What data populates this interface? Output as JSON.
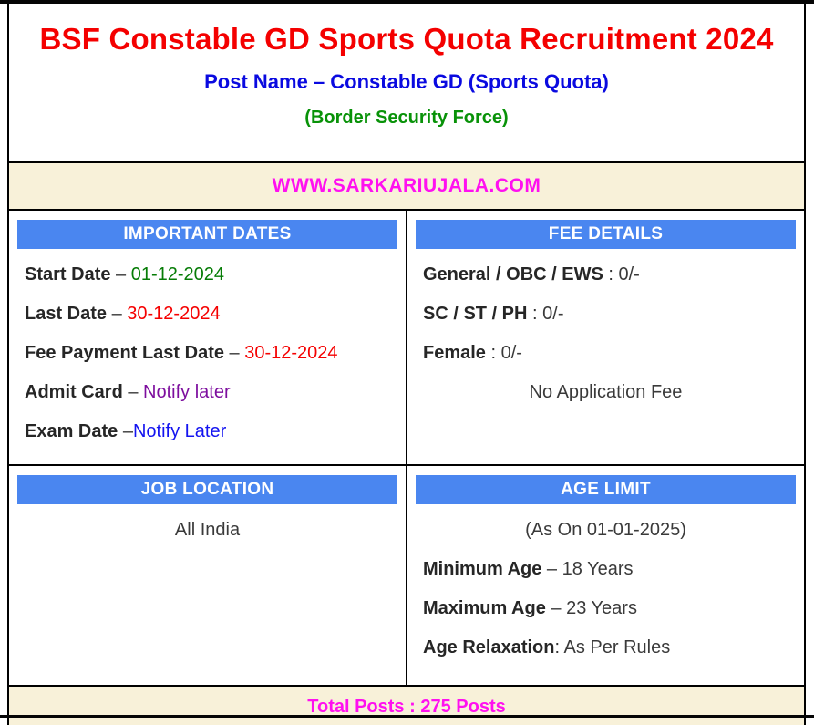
{
  "header": {
    "title": "BSF Constable GD Sports Quota Recruitment 2024",
    "post_name": "Post Name – Constable GD (Sports Quota)",
    "organization": "(Border Security Force)"
  },
  "site_banner": {
    "text": "WWW.SARKARIUJALA.COM"
  },
  "important_dates": {
    "header": "IMPORTANT DATES",
    "items": [
      {
        "label": "Start Date",
        "sep": " – ",
        "value": "01-12-2024",
        "color": "#067c06"
      },
      {
        "label": "Last Date",
        "sep": " – ",
        "value": "30-12-2024",
        "color": "#f50000"
      },
      {
        "label": "Fee Payment Last Date",
        "sep": " – ",
        "value": "30-12-2024",
        "color": "#f50000"
      },
      {
        "label": "Admit Card",
        "sep": " – ",
        "value": "Notify later",
        "color": "#7d0e9e"
      },
      {
        "label": "Exam Date",
        "sep": " –",
        "value": "Notify Later",
        "color": "#1414f0"
      }
    ]
  },
  "fee_details": {
    "header": "FEE DETAILS",
    "items": [
      {
        "label": "General / OBC / EWS",
        "sep": " : ",
        "value": "0/-"
      },
      {
        "label": "SC / ST / PH",
        "sep": " : ",
        "value": "0/-"
      },
      {
        "label": "Female",
        "sep": " : ",
        "value": "0/-"
      }
    ],
    "note": "No Application Fee"
  },
  "job_location": {
    "header": "JOB LOCATION",
    "value": "All India"
  },
  "age_limit": {
    "header": "AGE LIMIT",
    "as_on": "(As On 01-01-2025)",
    "items": [
      {
        "label": "Minimum Age",
        "sep": " – ",
        "value": "18 Years"
      },
      {
        "label": "Maximum Age",
        "sep": " – ",
        "value": "23 Years"
      },
      {
        "label": "Age Relaxation",
        "sep": ": ",
        "value": "As Per Rules"
      }
    ]
  },
  "total_posts_banner": {
    "text": "Total Posts : 275 Posts"
  },
  "colors": {
    "title_red": "#f40000",
    "post_name_blue": "#0a0ae0",
    "org_green": "#089208",
    "section_header_bg": "#4a86f0",
    "section_header_text": "#ffffff",
    "banner_bg": "#f8f1d9",
    "banner_text_magenta": "#ff10f0",
    "label_dark": "#262626",
    "value_dark": "#3a3a3a",
    "date_green": "#067c06",
    "date_red": "#f50000",
    "notify_purple": "#7d0e9e",
    "notify_blue": "#1414f0",
    "border_black": "#000000"
  }
}
